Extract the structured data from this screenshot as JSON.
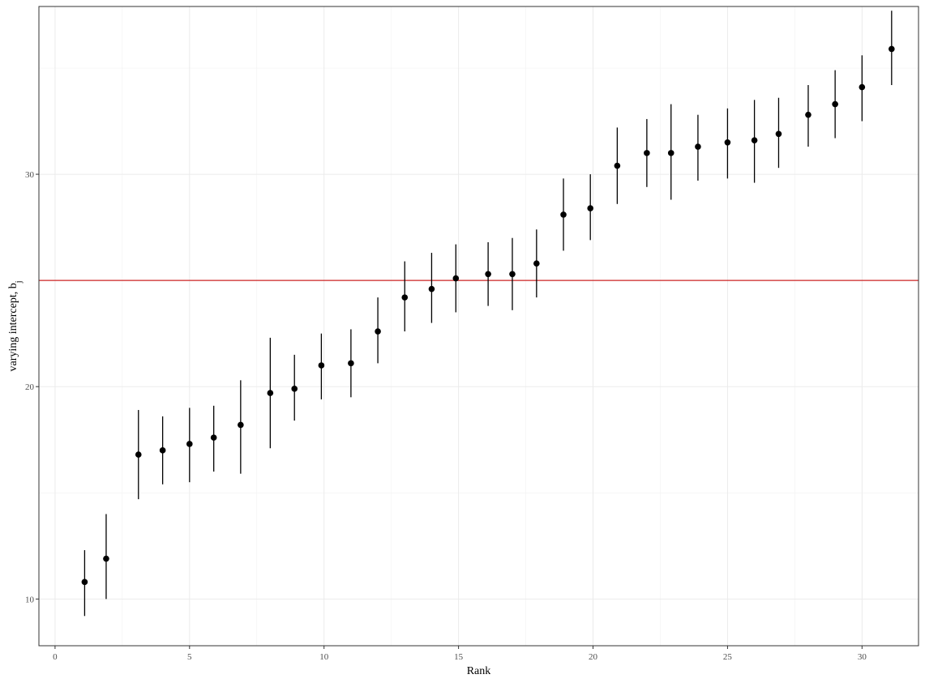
{
  "chart_data": {
    "type": "scatter",
    "xlabel": "Rank",
    "ylabel": "varying intercept, ",
    "ylabel_symbol": "b",
    "ylabel_subscript": "j",
    "xlim": [
      -0.6,
      32.1
    ],
    "ylim": [
      7.8,
      37.9
    ],
    "x_ticks": [
      0,
      5,
      10,
      15,
      20,
      25,
      30
    ],
    "y_ticks": [
      10,
      20,
      30
    ],
    "grid": true,
    "reference_line": {
      "y": 25,
      "color": "#cc2222"
    },
    "points": [
      {
        "x": 1.1,
        "y": 10.8,
        "lo": 9.2,
        "hi": 12.3
      },
      {
        "x": 1.9,
        "y": 11.9,
        "lo": 10.0,
        "hi": 14.0
      },
      {
        "x": 3.1,
        "y": 16.8,
        "lo": 14.7,
        "hi": 18.9
      },
      {
        "x": 4.0,
        "y": 17.0,
        "lo": 15.4,
        "hi": 18.6
      },
      {
        "x": 5.0,
        "y": 17.3,
        "lo": 15.5,
        "hi": 19.0
      },
      {
        "x": 5.9,
        "y": 17.6,
        "lo": 16.0,
        "hi": 19.1
      },
      {
        "x": 6.9,
        "y": 18.2,
        "lo": 15.9,
        "hi": 20.3
      },
      {
        "x": 8.0,
        "y": 19.7,
        "lo": 17.1,
        "hi": 22.3
      },
      {
        "x": 8.9,
        "y": 19.9,
        "lo": 18.4,
        "hi": 21.5
      },
      {
        "x": 9.9,
        "y": 21.0,
        "lo": 19.4,
        "hi": 22.5
      },
      {
        "x": 11.0,
        "y": 21.1,
        "lo": 19.5,
        "hi": 22.7
      },
      {
        "x": 12.0,
        "y": 22.6,
        "lo": 21.1,
        "hi": 24.2
      },
      {
        "x": 13.0,
        "y": 24.2,
        "lo": 22.6,
        "hi": 25.9
      },
      {
        "x": 14.0,
        "y": 24.6,
        "lo": 23.0,
        "hi": 26.3
      },
      {
        "x": 14.9,
        "y": 25.1,
        "lo": 23.5,
        "hi": 26.7
      },
      {
        "x": 16.1,
        "y": 25.3,
        "lo": 23.8,
        "hi": 26.8
      },
      {
        "x": 17.0,
        "y": 25.3,
        "lo": 23.6,
        "hi": 27.0
      },
      {
        "x": 17.9,
        "y": 25.8,
        "lo": 24.2,
        "hi": 27.4
      },
      {
        "x": 18.9,
        "y": 28.1,
        "lo": 26.4,
        "hi": 29.8
      },
      {
        "x": 19.9,
        "y": 28.4,
        "lo": 26.9,
        "hi": 30.0
      },
      {
        "x": 20.9,
        "y": 30.4,
        "lo": 28.6,
        "hi": 32.2
      },
      {
        "x": 22.0,
        "y": 31.0,
        "lo": 29.4,
        "hi": 32.6
      },
      {
        "x": 22.9,
        "y": 31.0,
        "lo": 28.8,
        "hi": 33.3
      },
      {
        "x": 23.9,
        "y": 31.3,
        "lo": 29.7,
        "hi": 32.8
      },
      {
        "x": 25.0,
        "y": 31.5,
        "lo": 29.8,
        "hi": 33.1
      },
      {
        "x": 26.0,
        "y": 31.6,
        "lo": 29.6,
        "hi": 33.5
      },
      {
        "x": 26.9,
        "y": 31.9,
        "lo": 30.3,
        "hi": 33.6
      },
      {
        "x": 28.0,
        "y": 32.8,
        "lo": 31.3,
        "hi": 34.2
      },
      {
        "x": 29.0,
        "y": 33.3,
        "lo": 31.7,
        "hi": 34.9
      },
      {
        "x": 30.0,
        "y": 34.1,
        "lo": 32.5,
        "hi": 35.6
      },
      {
        "x": 31.1,
        "y": 35.9,
        "lo": 34.2,
        "hi": 37.7
      }
    ]
  }
}
